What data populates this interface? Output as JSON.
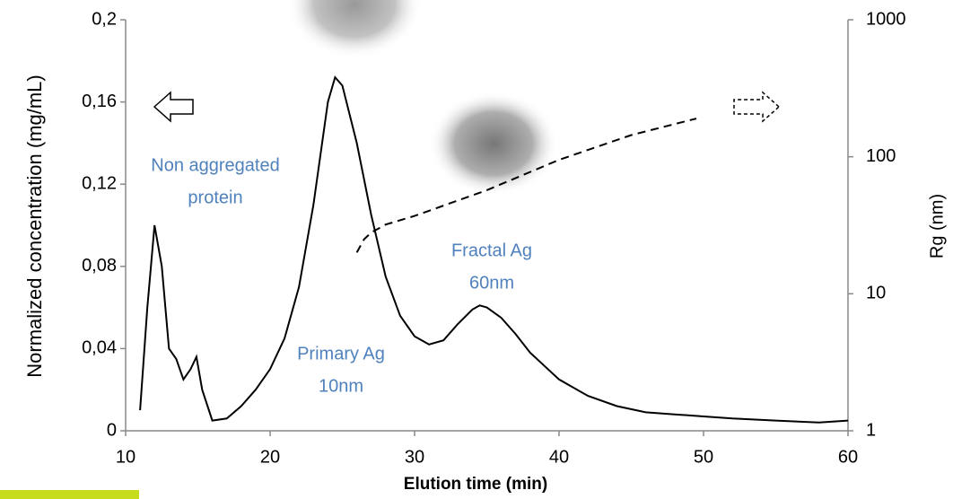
{
  "chart_data": {
    "type": "line",
    "xlabel": "Elution time (min)",
    "ylabel": "Normalized concentration (mg/mL)",
    "y2label": "Rg (nm)",
    "xlim": [
      10,
      60
    ],
    "xticks": [
      10,
      20,
      30,
      40,
      50,
      60
    ],
    "ylim": [
      0,
      0.2
    ],
    "yticks": [
      0,
      {
        "value": 0.04,
        "label": "0,04"
      },
      {
        "value": 0.08,
        "label": "0,08"
      },
      {
        "value": 0.12,
        "label": "0,12"
      },
      {
        "value": 0.16,
        "label": "0,16"
      },
      {
        "value": 0.2,
        "label": "0,2"
      }
    ],
    "y2lim": [
      1,
      1000
    ],
    "y2ticks": [
      1,
      10,
      100,
      1000
    ],
    "y2log": true,
    "series": [
      {
        "color": "#000000",
        "dash": false,
        "x": [
          11,
          11.5,
          12,
          12.5,
          13,
          13.5,
          14,
          14.5,
          14.9,
          15.3,
          16,
          17,
          18,
          19,
          20,
          21,
          22,
          23,
          24,
          24.5,
          25,
          26,
          27,
          28,
          29,
          30,
          31,
          32,
          33,
          34,
          34.5,
          35,
          36,
          37,
          38,
          40,
          42,
          44,
          46,
          48,
          50,
          52,
          55,
          58,
          60
        ],
        "values": [
          0.01,
          0.06,
          0.1,
          0.08,
          0.04,
          0.035,
          0.025,
          0.03,
          0.036,
          0.02,
          0.005,
          0.006,
          0.012,
          0.02,
          0.03,
          0.045,
          0.07,
          0.11,
          0.16,
          0.172,
          0.168,
          0.14,
          0.105,
          0.075,
          0.056,
          0.046,
          0.042,
          0.044,
          0.052,
          0.059,
          0.061,
          0.06,
          0.055,
          0.047,
          0.038,
          0.025,
          0.017,
          0.012,
          0.009,
          0.008,
          0.007,
          0.006,
          0.005,
          0.004,
          0.005
        ]
      },
      {
        "color": "#000000",
        "dash": true,
        "axis": "y2",
        "x": [
          26,
          26.5,
          27,
          28,
          30,
          35,
          40,
          45,
          49.5
        ],
        "values": [
          20,
          25,
          28,
          32,
          37,
          57,
          95,
          144,
          190
        ]
      }
    ],
    "annotations": [
      {
        "lines": [
          "Non aggregated",
          "protein"
        ]
      },
      {
        "lines": [
          "Primary Ag",
          "10nm"
        ]
      },
      {
        "lines": [
          "Fractal Ag",
          "60nm"
        ]
      }
    ]
  }
}
